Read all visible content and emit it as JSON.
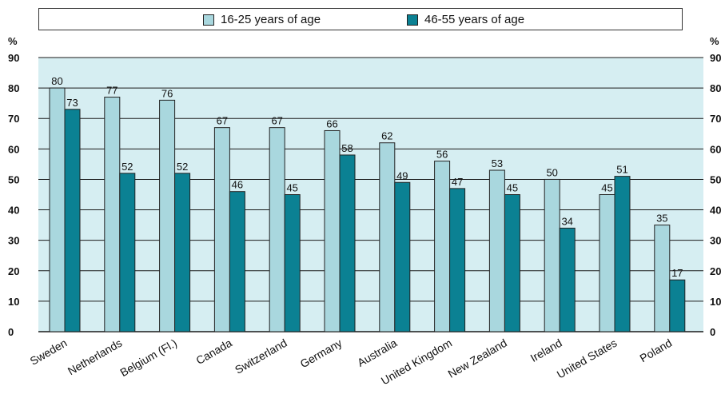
{
  "chart_data": {
    "type": "bar",
    "categories": [
      "Sweden",
      "Netherlands",
      "Belgium (Fl.)",
      "Canada",
      "Switzerland",
      "Germany",
      "Australia",
      "United Kingdom",
      "New Zealand",
      "Ireland",
      "United States",
      "Poland"
    ],
    "series": [
      {
        "name": "16-25 years of age",
        "values": [
          80,
          77,
          76,
          67,
          67,
          66,
          62,
          56,
          53,
          50,
          45,
          35
        ],
        "color": "#a9d7de"
      },
      {
        "name": "46-55 years of age",
        "values": [
          73,
          52,
          52,
          46,
          45,
          58,
          49,
          47,
          45,
          34,
          51,
          17
        ],
        "color": "#0b8193"
      }
    ],
    "yunit": "%",
    "yticks": [
      0,
      10,
      20,
      30,
      40,
      50,
      60,
      70,
      80,
      90
    ],
    "ylim": [
      0,
      90
    ],
    "grid": true,
    "legend": "top",
    "plot_background": "#d6eef2"
  }
}
